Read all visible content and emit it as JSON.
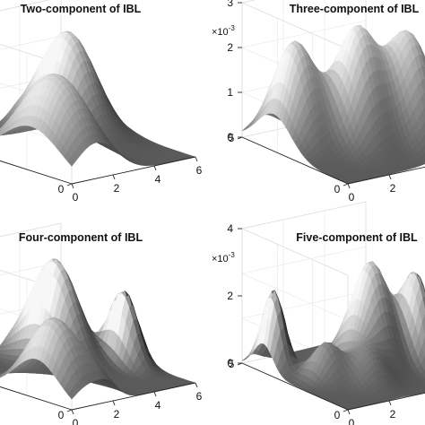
{
  "chart_data": [
    {
      "type": "surface",
      "title": "Two-component of IBL",
      "exponent_label": "",
      "x_ticks": [
        "0",
        "2",
        "4",
        "6"
      ],
      "y_ticks": [
        "0"
      ],
      "z_ticks": [],
      "xlim": [
        0,
        6
      ],
      "ylim": [
        0,
        5
      ],
      "peaks": [
        {
          "x": 1.2,
          "y": 1.5,
          "amp": 0.9,
          "sx": 1.0,
          "sy": 1.1
        },
        {
          "x": 4.5,
          "y": 3.6,
          "amp": 1.0,
          "sx": 0.8,
          "sy": 0.9
        }
      ],
      "zmax": 1.15,
      "grid": true
    },
    {
      "type": "surface",
      "title": "Three-component of IBL",
      "exponent_label": "×10",
      "exponent_power": "-3",
      "x_ticks": [
        "0",
        "2"
      ],
      "y_ticks": [
        "5",
        "0"
      ],
      "z_ticks": [
        "0",
        "1",
        "2",
        "3"
      ],
      "xlim": [
        0,
        6
      ],
      "ylim": [
        0,
        5
      ],
      "zlim": [
        0,
        3
      ],
      "peaks": [
        {
          "x": 1.0,
          "y": 3.5,
          "amp": 2.3,
          "sx": 0.7,
          "sy": 0.8
        },
        {
          "x": 3.0,
          "y": 2.5,
          "amp": 2.6,
          "sx": 0.8,
          "sy": 0.8
        },
        {
          "x": 5.0,
          "y": 2.0,
          "amp": 2.4,
          "sx": 0.8,
          "sy": 0.9
        }
      ],
      "zmax": 3,
      "grid": true
    },
    {
      "type": "surface",
      "title": "Four-component of IBL",
      "exponent_label": "",
      "x_ticks": [
        "0",
        "2",
        "4",
        "6"
      ],
      "y_ticks": [
        "0"
      ],
      "z_ticks": [],
      "xlim": [
        0,
        6
      ],
      "ylim": [
        0,
        5
      ],
      "peaks": [
        {
          "x": 0.8,
          "y": 1.3,
          "amp": 0.75,
          "sx": 0.7,
          "sy": 0.8
        },
        {
          "x": 1.8,
          "y": 0.5,
          "amp": 0.2,
          "sx": 0.5,
          "sy": 0.6
        },
        {
          "x": 4.0,
          "y": 3.7,
          "amp": 1.0,
          "sx": 0.6,
          "sy": 0.8
        },
        {
          "x": 5.4,
          "y": 2.2,
          "amp": 0.75,
          "sx": 0.35,
          "sy": 0.5
        }
      ],
      "zmax": 1.15,
      "grid": true
    },
    {
      "type": "surface",
      "title": "Five-component of IBL",
      "exponent_label": "×10",
      "exponent_power": "-3",
      "x_ticks": [
        "0",
        "2"
      ],
      "y_ticks": [
        "5",
        "0"
      ],
      "z_ticks": [
        "0",
        "2",
        "4"
      ],
      "xlim": [
        0,
        6
      ],
      "ylim": [
        0,
        5
      ],
      "zlim": [
        0,
        4
      ],
      "peaks": [
        {
          "x": 0.5,
          "y": 4.0,
          "amp": 2.4,
          "sx": 0.35,
          "sy": 0.45
        },
        {
          "x": 1.4,
          "y": 2.4,
          "amp": 1.1,
          "sx": 0.5,
          "sy": 0.5
        },
        {
          "x": 2.6,
          "y": 1.6,
          "amp": 0.9,
          "sx": 0.6,
          "sy": 0.6
        },
        {
          "x": 4.0,
          "y": 2.8,
          "amp": 3.1,
          "sx": 0.7,
          "sy": 0.7
        },
        {
          "x": 5.4,
          "y": 2.0,
          "amp": 2.6,
          "sx": 0.4,
          "sy": 0.6
        }
      ],
      "zmax": 4,
      "grid": true
    }
  ]
}
